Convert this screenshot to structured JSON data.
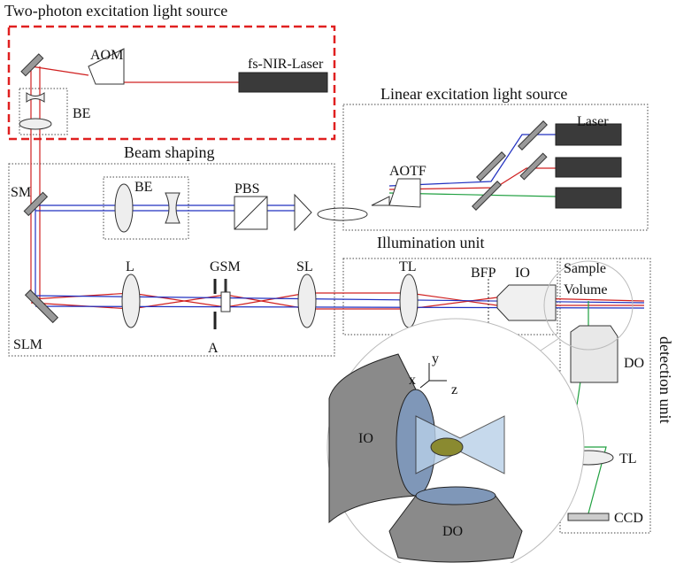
{
  "two_photon": {
    "title": "Two-photon excitation light source",
    "aom": "AOM",
    "laser": "fs-NIR-Laser",
    "be": "BE"
  },
  "linear": {
    "title": "Linear excitation light source",
    "laser": "Laser",
    "aotf": "AOTF"
  },
  "beam_shaping": {
    "title": "Beam shaping",
    "be": "BE",
    "pbs": "PBS",
    "sm": "SM",
    "l": "L",
    "gsm": "GSM",
    "sl": "SL",
    "slm": "SLM",
    "a": "A"
  },
  "illumination": {
    "title": "Illumination unit",
    "tl": "TL",
    "bfp": "BFP",
    "io": "IO"
  },
  "detection": {
    "title": "detection unit",
    "sample": "Sample",
    "volume": "Volume",
    "do": "DO",
    "tl": "TL",
    "ccd": "CCD"
  },
  "inset": {
    "y": "y",
    "x": "x",
    "z": "z",
    "io": "IO",
    "do": "DO"
  }
}
